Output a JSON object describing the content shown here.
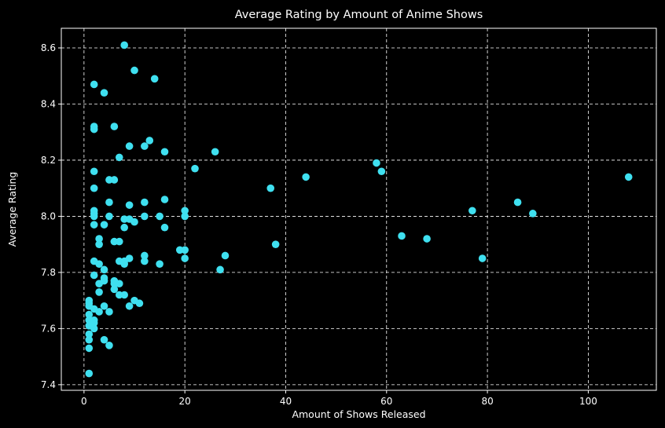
{
  "colors": {
    "background": "#000000",
    "foreground": "#ffffff",
    "marker": "#3fe0f0",
    "grid": "#ffffff"
  },
  "chart_data": {
    "type": "scatter",
    "title": "Average Rating by Amount of Anime Shows",
    "xlabel": "Amount of Shows Released",
    "ylabel": "Average Rating",
    "xlim": [
      -4.5,
      113.5
    ],
    "ylim": [
      7.38,
      8.67
    ],
    "xticks": [
      0,
      20,
      40,
      60,
      80,
      100
    ],
    "yticks": [
      7.4,
      7.6,
      7.8,
      8.0,
      8.2,
      8.4,
      8.6
    ],
    "xtick_labels": [
      "0",
      "20",
      "40",
      "60",
      "80",
      "100"
    ],
    "ytick_labels": [
      "7.4",
      "7.6",
      "7.8",
      "8.0",
      "8.2",
      "8.4",
      "8.6"
    ],
    "grid": true,
    "points": [
      [
        1,
        7.44
      ],
      [
        1,
        7.53
      ],
      [
        1,
        7.56
      ],
      [
        1,
        7.58
      ],
      [
        1,
        7.61
      ],
      [
        1,
        7.63
      ],
      [
        1,
        7.65
      ],
      [
        1,
        7.68
      ],
      [
        1,
        7.69
      ],
      [
        1,
        7.7
      ],
      [
        2,
        7.6
      ],
      [
        2,
        7.62
      ],
      [
        2,
        7.63
      ],
      [
        2,
        7.67
      ],
      [
        2,
        7.79
      ],
      [
        2,
        7.84
      ],
      [
        2,
        7.97
      ],
      [
        2,
        8.0
      ],
      [
        2,
        8.01
      ],
      [
        2,
        8.02
      ],
      [
        2,
        8.1
      ],
      [
        2,
        8.16
      ],
      [
        2,
        8.31
      ],
      [
        2,
        8.32
      ],
      [
        2,
        8.47
      ],
      [
        3,
        7.66
      ],
      [
        3,
        7.73
      ],
      [
        3,
        7.76
      ],
      [
        3,
        7.83
      ],
      [
        3,
        7.9
      ],
      [
        3,
        7.92
      ],
      [
        4,
        7.56
      ],
      [
        4,
        7.68
      ],
      [
        4,
        7.77
      ],
      [
        4,
        7.78
      ],
      [
        4,
        7.81
      ],
      [
        4,
        7.97
      ],
      [
        4,
        8.44
      ],
      [
        5,
        7.54
      ],
      [
        5,
        7.66
      ],
      [
        5,
        8.0
      ],
      [
        5,
        8.05
      ],
      [
        5,
        8.13
      ],
      [
        6,
        7.74
      ],
      [
        6,
        7.76
      ],
      [
        6,
        7.77
      ],
      [
        6,
        7.91
      ],
      [
        6,
        8.13
      ],
      [
        6,
        8.32
      ],
      [
        7,
        7.72
      ],
      [
        7,
        7.76
      ],
      [
        7,
        7.84
      ],
      [
        7,
        7.91
      ],
      [
        7,
        8.21
      ],
      [
        8,
        7.72
      ],
      [
        8,
        7.83
      ],
      [
        8,
        7.84
      ],
      [
        8,
        7.96
      ],
      [
        8,
        7.99
      ],
      [
        8,
        8.61
      ],
      [
        9,
        7.68
      ],
      [
        9,
        7.85
      ],
      [
        9,
        7.99
      ],
      [
        9,
        8.04
      ],
      [
        9,
        8.25
      ],
      [
        10,
        7.7
      ],
      [
        10,
        7.98
      ],
      [
        10,
        8.52
      ],
      [
        11,
        7.69
      ],
      [
        12,
        7.84
      ],
      [
        12,
        7.86
      ],
      [
        12,
        8.0
      ],
      [
        12,
        8.05
      ],
      [
        12,
        8.25
      ],
      [
        13,
        8.27
      ],
      [
        14,
        8.49
      ],
      [
        15,
        7.83
      ],
      [
        15,
        8.0
      ],
      [
        16,
        7.96
      ],
      [
        16,
        8.06
      ],
      [
        16,
        8.23
      ],
      [
        19,
        7.88
      ],
      [
        20,
        7.85
      ],
      [
        20,
        7.88
      ],
      [
        20,
        8.0
      ],
      [
        20,
        8.02
      ],
      [
        22,
        8.17
      ],
      [
        26,
        8.23
      ],
      [
        27,
        7.81
      ],
      [
        28,
        7.86
      ],
      [
        37,
        8.1
      ],
      [
        38,
        7.9
      ],
      [
        44,
        8.14
      ],
      [
        58,
        8.19
      ],
      [
        59,
        8.16
      ],
      [
        63,
        7.93
      ],
      [
        68,
        7.92
      ],
      [
        77,
        8.02
      ],
      [
        79,
        7.85
      ],
      [
        86,
        8.05
      ],
      [
        89,
        8.01
      ],
      [
        108,
        8.14
      ]
    ]
  }
}
